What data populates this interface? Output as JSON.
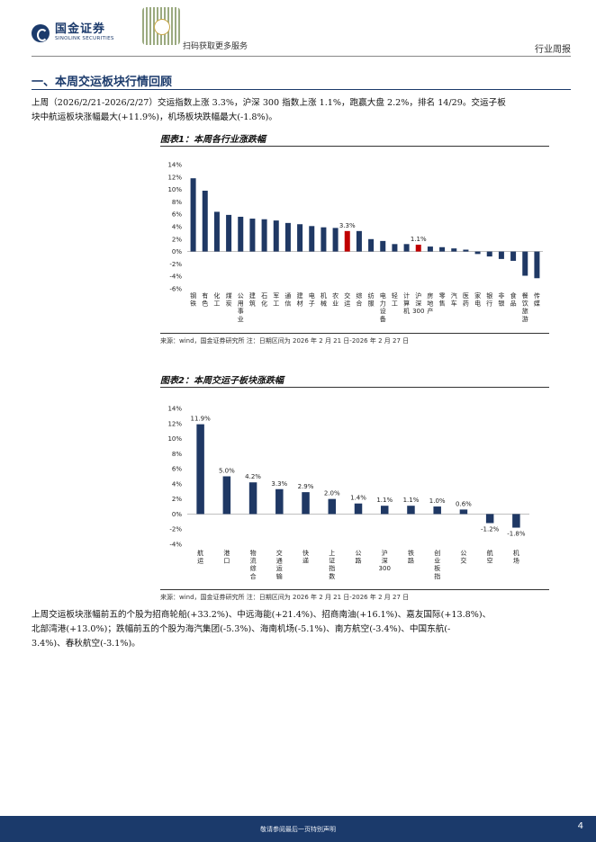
{
  "header": {
    "logo_cn": "国金证券",
    "logo_en": "SINOLINK SECURITIES",
    "qr_label": "扫码获取更多服务",
    "category": "行业周报"
  },
  "section": {
    "title": "一、本周交运板块行情回顾"
  },
  "paragraphs": {
    "intro_1": "上周（2026/2/21-2026/2/27）交运指数上涨 3.3%，沪深 300 指数上涨 1.1%，跑赢大盘 2.2%，排名 14/29。交运子板",
    "intro_2": "块中航运板块涨幅最大(+11.9%)，机场板块跌幅最大(-1.8%)。",
    "stocks_1": "上周交运板块涨幅前五的个股为招商轮船(+33.2%)、中远海能(+21.4%)、招商南油(+16.1%)、嘉友国际(+13.8%)、",
    "stocks_2": "北部湾港(+13.0%)；跌幅前五的个股为海汽集团(-5.3%)、海南机场(-5.1%)、南方航空(-3.4%)、中国东航(-",
    "stocks_3": "3.4%)、春秋航空(-3.1%)。"
  },
  "figures": {
    "fig1_title": "图表1：本周各行业涨跌幅",
    "fig1_source": "来源：wind，国金证券研究所    注：日期区间为 2026 年 2 月 21 日-2026 年 2 月 27 日",
    "fig2_title": "图表2：本周交运子板块涨跌幅",
    "fig2_source": "来源：wind，国金证券研究所    注：日期区间为 2026 年 2 月 21 日-2026 年 2 月 27 日"
  },
  "footer": {
    "disclaimer": "敬请参阅最后一页特别声明",
    "page": "4"
  },
  "colors": {
    "navy": "#1b3a6b",
    "bar": "#1f3864",
    "highlight": "#c00000"
  },
  "chart_data": [
    {
      "type": "bar",
      "title": "图表1：本周各行业涨跌幅",
      "categories": [
        "钢铁",
        "有色",
        "化工",
        "煤炭",
        "公用事业",
        "建筑",
        "石化",
        "军工",
        "通信",
        "建材",
        "电子",
        "机械",
        "农业",
        "交运",
        "综合",
        "纺服",
        "电力设备",
        "轻工",
        "计算机",
        "沪深300",
        "房地产",
        "零售",
        "汽车",
        "医药",
        "家电",
        "银行",
        "非银",
        "食品",
        "餐饮旅游",
        "传媒"
      ],
      "values": [
        11.8,
        9.8,
        6.4,
        5.9,
        5.6,
        5.3,
        5.2,
        5.0,
        4.6,
        4.4,
        4.1,
        3.9,
        3.8,
        3.3,
        3.3,
        2.0,
        1.7,
        1.2,
        1.2,
        1.1,
        0.8,
        0.7,
        0.5,
        0.3,
        -0.4,
        -0.8,
        -1.2,
        -1.5,
        -3.9,
        -4.3
      ],
      "highlight": [
        "交运",
        "沪深300"
      ],
      "data_labels": {
        "交运": "3.3%",
        "沪深300": "1.1%"
      },
      "yticks": [
        "14%",
        "12%",
        "10%",
        "8%",
        "6%",
        "4%",
        "2%",
        "0%",
        "-2%",
        "-4%",
        "-6%"
      ],
      "ylim": [
        -6,
        14
      ]
    },
    {
      "type": "bar",
      "title": "图表2：本周交运子板块涨跌幅",
      "categories": [
        "航运",
        "港口",
        "物流综合",
        "交通运输",
        "快递",
        "上证指数",
        "公路",
        "沪深300",
        "铁路",
        "创业板指",
        "公交",
        "航空",
        "机场"
      ],
      "values": [
        11.9,
        5.0,
        4.2,
        3.3,
        2.9,
        2.0,
        1.4,
        1.1,
        1.1,
        1.0,
        0.6,
        -1.2,
        -1.8
      ],
      "data_labels": [
        "11.9%",
        "5.0%",
        "4.2%",
        "3.3%",
        "2.9%",
        "2.0%",
        "1.4%",
        "1.1%",
        "1.1%",
        "1.0%",
        "0.6%",
        "-1.2%",
        "-1.8%"
      ],
      "yticks": [
        "14%",
        "12%",
        "10%",
        "8%",
        "6%",
        "4%",
        "2%",
        "0%",
        "-2%",
        "-4%"
      ],
      "ylim": [
        -4,
        14
      ]
    }
  ]
}
